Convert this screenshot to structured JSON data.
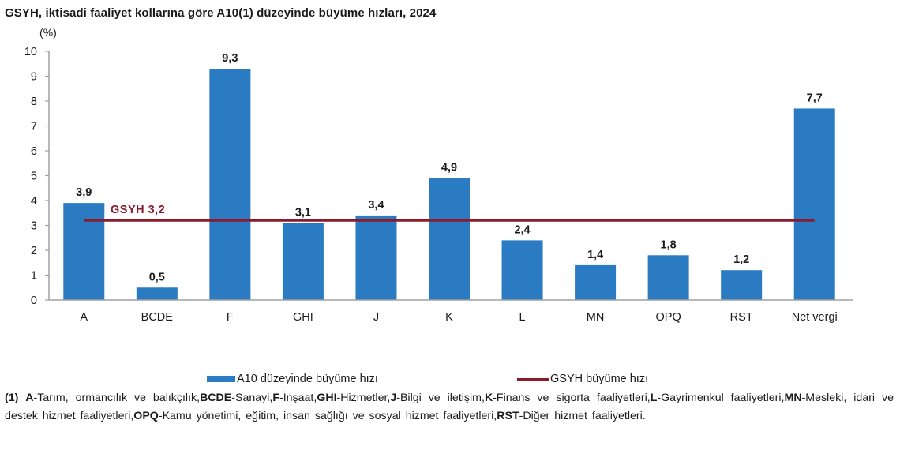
{
  "title": "GSYH, iktisadi faaliyet kollarına göre A10(1) düzeyinde büyüme hızları, 2024",
  "unit_label": "(%)",
  "colors": {
    "bar": "#2a7bc2",
    "line": "#8b1a2a",
    "axis": "#a0a0a0",
    "text": "#1a1a1a"
  },
  "chart_data": {
    "type": "bar",
    "title": "GSYH, iktisadi faaliyet kollarına göre A10(1) düzeyinde büyüme hızları, 2024",
    "xlabel": "",
    "ylabel": "(%)",
    "ylim": [
      0,
      10
    ],
    "yticks": [
      0,
      1,
      2,
      3,
      4,
      5,
      6,
      7,
      8,
      9,
      10
    ],
    "grid": false,
    "legend_position": "bottom",
    "categories": [
      "A",
      "BCDE",
      "F",
      "GHI",
      "J",
      "K",
      "L",
      "MN",
      "OPQ",
      "RST",
      "Net vergi"
    ],
    "series": [
      {
        "name": "A10 düzeyinde büyüme hızı",
        "type": "bar",
        "values": [
          3.9,
          0.5,
          9.3,
          3.1,
          3.4,
          4.9,
          2.4,
          1.4,
          1.8,
          1.2,
          7.7
        ],
        "labels": [
          "3,9",
          "0,5",
          "9,3",
          "3,1",
          "3,4",
          "4,9",
          "2,4",
          "1,4",
          "1,8",
          "1,2",
          "7,7"
        ]
      },
      {
        "name": "GSYH büyüme hızı",
        "type": "line",
        "value": 3.2
      }
    ],
    "annotations": [
      {
        "text": "GSYH 3,2",
        "y": 3.2
      }
    ]
  },
  "legend": {
    "bar_label": "A10 düzeyinde büyüme hızı",
    "line_label": "GSYH büyüme hızı"
  },
  "footnote": {
    "marker": "(1)",
    "items": [
      {
        "code": "A",
        "desc": "-Tarım, ormancılık ve balıkçılık,"
      },
      {
        "code": "BCDE",
        "desc": "-Sanayi,"
      },
      {
        "code": "F",
        "desc": "-İnşaat,"
      },
      {
        "code": "GHI",
        "desc": "-Hizmetler,"
      },
      {
        "code": "J",
        "desc": "-Bilgi ve iletişim,"
      },
      {
        "code": "K",
        "desc": "-Finans ve sigorta faaliyetleri,"
      },
      {
        "code": "L",
        "desc": "-Gayrimenkul faaliyetleri,"
      },
      {
        "code": "MN",
        "desc": "-Mesleki, idari ve destek hizmet faaliyetleri,"
      },
      {
        "code": "OPQ",
        "desc": "-Kamu yönetimi, eğitim, insan sağlığı ve sosyal hizmet faaliyetleri,"
      },
      {
        "code": "RST",
        "desc": "-Diğer hizmet faaliyetleri."
      }
    ]
  }
}
